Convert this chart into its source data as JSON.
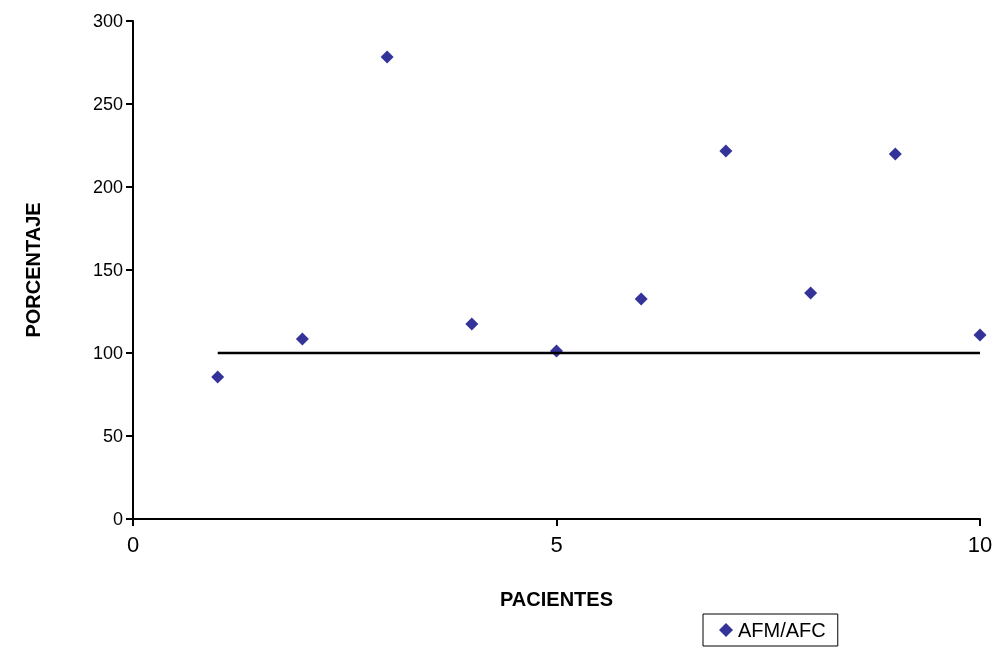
{
  "chart_data": {
    "type": "scatter",
    "xlabel": "PACIENTES",
    "ylabel": "PORCENTAJE",
    "x": [
      1,
      2,
      3,
      4,
      5,
      6,
      7,
      8,
      9,
      10
    ],
    "series": [
      {
        "name": "AFM/AFC",
        "color": "#000080",
        "marker": "diamond",
        "values": [
          85.5,
          108.4,
          278.3,
          117.5,
          101.2,
          132.5,
          221.7,
          136.1,
          219.9,
          110.8
        ]
      },
      {
        "type": "line",
        "color": "#000000",
        "marker": "none",
        "x": [
          1,
          10
        ],
        "values": [
          100,
          100
        ]
      }
    ],
    "xlim": [
      0,
      10
    ],
    "xticks": [
      0,
      5,
      10
    ],
    "ylim": [
      0,
      300
    ],
    "yticks": [
      0,
      50,
      100,
      150,
      200,
      250,
      300
    ],
    "grid": false,
    "legend": "bottom right"
  }
}
